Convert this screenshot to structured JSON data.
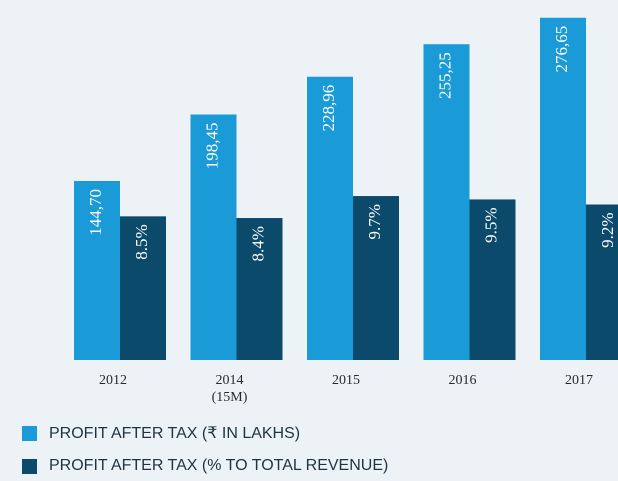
{
  "chart_data": {
    "type": "bar",
    "categories": [
      "2012",
      "2014\n(15M)",
      "2015",
      "2016",
      "2017"
    ],
    "series": [
      {
        "name": "PROFIT AFTER TAX (₹ IN LAKHS)",
        "color": "#1a9ad6",
        "values": [
          144.7,
          198.45,
          228.96,
          255.25,
          276.65
        ],
        "value_labels": [
          "144,70",
          "198,45",
          "228,96",
          "255,25",
          "276,65"
        ]
      },
      {
        "name": "PROFIT AFTER TAX (% TO TOTAL REVENUE)",
        "color": "#0b4a6b",
        "axis": "y2",
        "values": [
          8.5,
          8.4,
          9.7,
          9.5,
          9.2
        ],
        "value_labels": [
          "8.5%",
          "8.4%",
          "9.7%",
          "9.5%",
          "9.2%"
        ]
      }
    ],
    "ylim": [
      0,
      291
    ],
    "y2lim": [
      0,
      21.3
    ]
  }
}
